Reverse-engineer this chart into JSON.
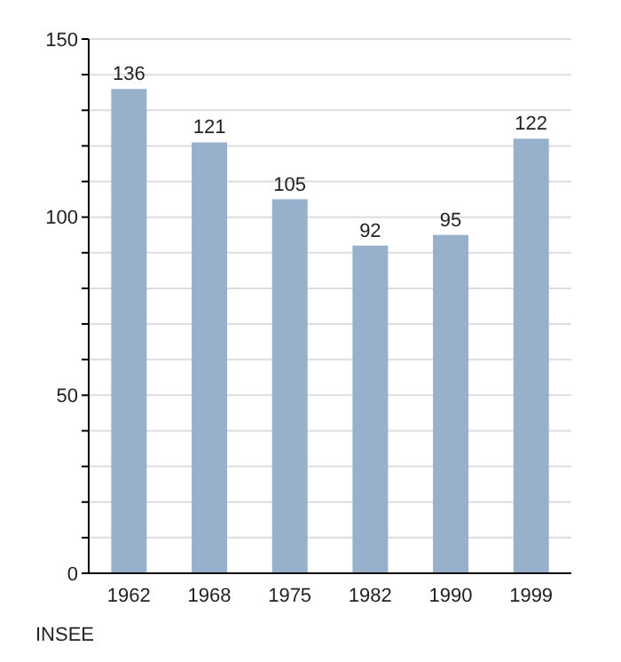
{
  "chart_data": {
    "type": "bar",
    "categories": [
      "1962",
      "1968",
      "1975",
      "1982",
      "1990",
      "1999"
    ],
    "values": [
      136,
      121,
      105,
      92,
      95,
      122
    ],
    "color": "#97b0cc",
    "data_labels": true,
    "ylim": [
      0,
      150
    ],
    "yticks": [
      0,
      {
        "value": 10,
        "label": null
      },
      {
        "value": 20,
        "label": null
      },
      {
        "value": 30,
        "label": null
      },
      {
        "value": 40,
        "label": null
      },
      50,
      {
        "value": 60,
        "label": null
      },
      {
        "value": 70,
        "label": null
      },
      {
        "value": 80,
        "label": null
      },
      {
        "value": 90,
        "label": null
      },
      100,
      {
        "value": 110,
        "label": null
      },
      {
        "value": 120,
        "label": null
      },
      {
        "value": 130,
        "label": null
      },
      {
        "value": 140,
        "label": null
      },
      150
    ],
    "grid": "y",
    "annotations": [
      "INSEE"
    ]
  }
}
